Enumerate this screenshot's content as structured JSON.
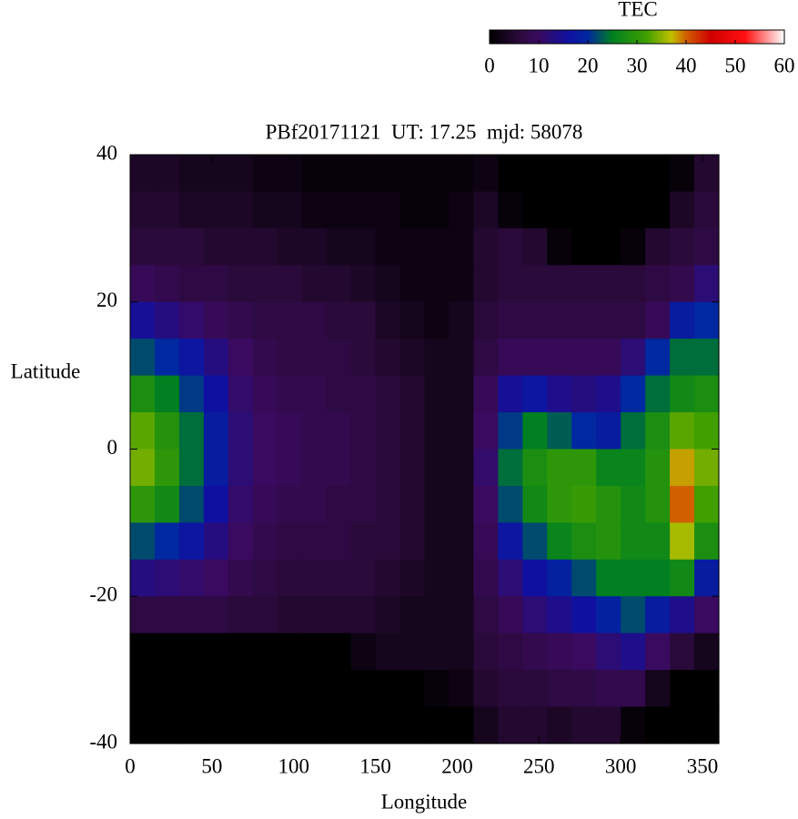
{
  "chart_data": {
    "type": "heatmap",
    "title": "PBf20171121  UT: 17.25  mjd: 58078",
    "x_label": "Longitude",
    "y_label": "Latitude",
    "xlim": [
      0,
      360
    ],
    "ylim": [
      -40,
      40
    ],
    "xticks": [
      0,
      50,
      100,
      150,
      200,
      250,
      300,
      350
    ],
    "yticks": [
      -40,
      -20,
      0,
      20,
      40
    ],
    "x": [
      7.5,
      22.5,
      37.5,
      52.5,
      67.5,
      82.5,
      97.5,
      112.5,
      127.5,
      142.5,
      157.5,
      172.5,
      187.5,
      202.5,
      217.5,
      232.5,
      247.5,
      262.5,
      277.5,
      292.5,
      307.5,
      322.5,
      337.5,
      352.5
    ],
    "y": [
      37.5,
      32.5,
      27.5,
      22.5,
      17.5,
      12.5,
      7.5,
      2.5,
      -2.5,
      -7.5,
      -12.5,
      -17.5,
      -22.5,
      -27.5,
      -32.5,
      -37.5
    ],
    "z": [
      [
        4,
        4,
        3,
        3,
        3,
        2,
        2,
        1,
        1,
        1,
        1,
        1,
        1,
        1,
        2,
        0,
        0,
        0,
        0,
        0,
        0,
        0,
        1,
        5
      ],
      [
        5,
        5,
        4,
        4,
        4,
        3,
        3,
        2,
        2,
        2,
        2,
        1,
        1,
        2,
        4,
        1,
        0,
        0,
        0,
        0,
        0,
        0,
        4,
        6
      ],
      [
        6,
        6,
        6,
        5,
        5,
        5,
        4,
        4,
        3,
        3,
        2,
        2,
        2,
        2,
        5,
        6,
        5,
        1,
        0,
        0,
        1,
        5,
        6,
        7
      ],
      [
        9,
        8,
        7,
        7,
        6,
        6,
        6,
        5,
        5,
        4,
        3,
        2,
        2,
        2,
        5,
        6,
        6,
        6,
        6,
        6,
        6,
        7,
        8,
        12
      ],
      [
        15,
        13,
        11,
        9,
        8,
        7,
        7,
        7,
        6,
        6,
        4,
        3,
        2,
        3,
        6,
        7,
        7,
        7,
        7,
        7,
        7,
        9,
        18,
        20
      ],
      [
        22,
        20,
        17,
        13,
        10,
        8,
        7,
        7,
        7,
        6,
        5,
        4,
        3,
        3,
        7,
        9,
        9,
        9,
        9,
        9,
        12,
        20,
        24,
        24
      ],
      [
        28,
        25,
        21,
        16,
        11,
        9,
        8,
        8,
        7,
        7,
        6,
        5,
        3,
        3,
        9,
        15,
        17,
        14,
        13,
        14,
        20,
        24,
        27,
        28
      ],
      [
        33,
        29,
        24,
        18,
        12,
        10,
        9,
        8,
        8,
        7,
        6,
        5,
        3,
        3,
        10,
        21,
        25,
        23,
        20,
        18,
        24,
        28,
        33,
        32
      ],
      [
        34,
        30,
        24,
        18,
        12,
        10,
        9,
        8,
        8,
        7,
        6,
        5,
        3,
        3,
        11,
        24,
        28,
        30,
        30,
        26,
        26,
        29,
        38,
        34
      ],
      [
        30,
        27,
        22,
        16,
        11,
        9,
        8,
        8,
        7,
        7,
        6,
        5,
        3,
        3,
        10,
        22,
        27,
        30,
        31,
        29,
        27,
        29,
        40,
        32
      ],
      [
        22,
        20,
        17,
        13,
        10,
        8,
        7,
        7,
        7,
        6,
        6,
        5,
        3,
        3,
        9,
        17,
        22,
        26,
        28,
        29,
        27,
        27,
        36,
        28
      ],
      [
        13,
        12,
        11,
        10,
        8,
        7,
        6,
        6,
        6,
        6,
        5,
        4,
        3,
        3,
        8,
        12,
        16,
        19,
        22,
        25,
        25,
        25,
        27,
        18
      ],
      [
        7,
        7,
        7,
        7,
        6,
        6,
        5,
        5,
        5,
        5,
        4,
        3,
        3,
        3,
        7,
        9,
        12,
        14,
        16,
        19,
        22,
        18,
        14,
        10
      ],
      [
        0,
        0,
        0,
        0,
        0,
        0,
        0,
        0,
        0,
        2,
        3,
        3,
        3,
        3,
        6,
        7,
        8,
        9,
        10,
        12,
        14,
        10,
        6,
        3
      ],
      [
        0,
        0,
        0,
        0,
        0,
        0,
        0,
        0,
        0,
        0,
        0,
        0,
        1,
        2,
        5,
        6,
        6,
        7,
        7,
        8,
        8,
        3,
        0,
        0
      ],
      [
        0,
        0,
        0,
        0,
        0,
        0,
        0,
        0,
        0,
        0,
        0,
        0,
        0,
        0,
        3,
        5,
        5,
        4,
        5,
        5,
        1,
        0,
        0,
        0
      ]
    ],
    "colorbar": {
      "label": "TEC",
      "clim": [
        0,
        60
      ],
      "ticks": [
        0,
        10,
        20,
        30,
        40,
        50,
        60
      ]
    },
    "colorscale": [
      [
        0,
        "#000000"
      ],
      [
        6,
        "#2a0a3a"
      ],
      [
        10,
        "#3a0a60"
      ],
      [
        16,
        "#1010a0"
      ],
      [
        20,
        "#0028a0"
      ],
      [
        25,
        "#008020"
      ],
      [
        32,
        "#40a000"
      ],
      [
        37,
        "#c0c000"
      ],
      [
        40,
        "#d06000"
      ],
      [
        45,
        "#d00000"
      ],
      [
        52,
        "#ff1010"
      ],
      [
        60,
        "#ffffff"
      ]
    ]
  }
}
